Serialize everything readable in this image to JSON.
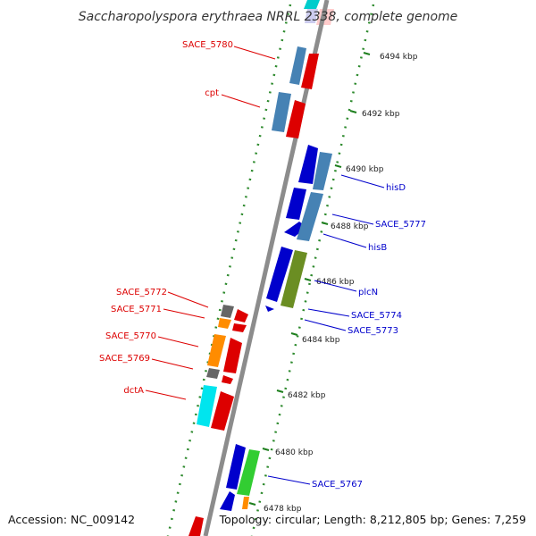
{
  "title": "Saccharopolyspora erythraea NRRL 2338, complete genome",
  "accession": "Accession: NC_009142",
  "summary": "Topology: circular; Length: 8,212,805 bp; Genes: 7,259",
  "colors": {
    "forward_label": "#dd0000",
    "reverse_label": "#0000cc",
    "backbone": "#8c8c8c",
    "tick": "#1e7f1e",
    "dots": "#2d8a2d"
  },
  "ticks": [
    "6494 kbp",
    "6492 kbp",
    "6490 kbp",
    "6488 kbp",
    "6486 kbp",
    "6484 kbp",
    "6482 kbp",
    "6480 kbp",
    "6478 kbp"
  ],
  "forward_genes": [
    "SACE_5780",
    "cpt",
    "SACE_5772",
    "SACE_5771",
    "SACE_5770",
    "SACE_5769",
    "dctA"
  ],
  "reverse_genes": [
    "hisD",
    "SACE_5777",
    "hisB",
    "plcN",
    "SACE_5774",
    "SACE_5773",
    "SACE_5767"
  ]
}
